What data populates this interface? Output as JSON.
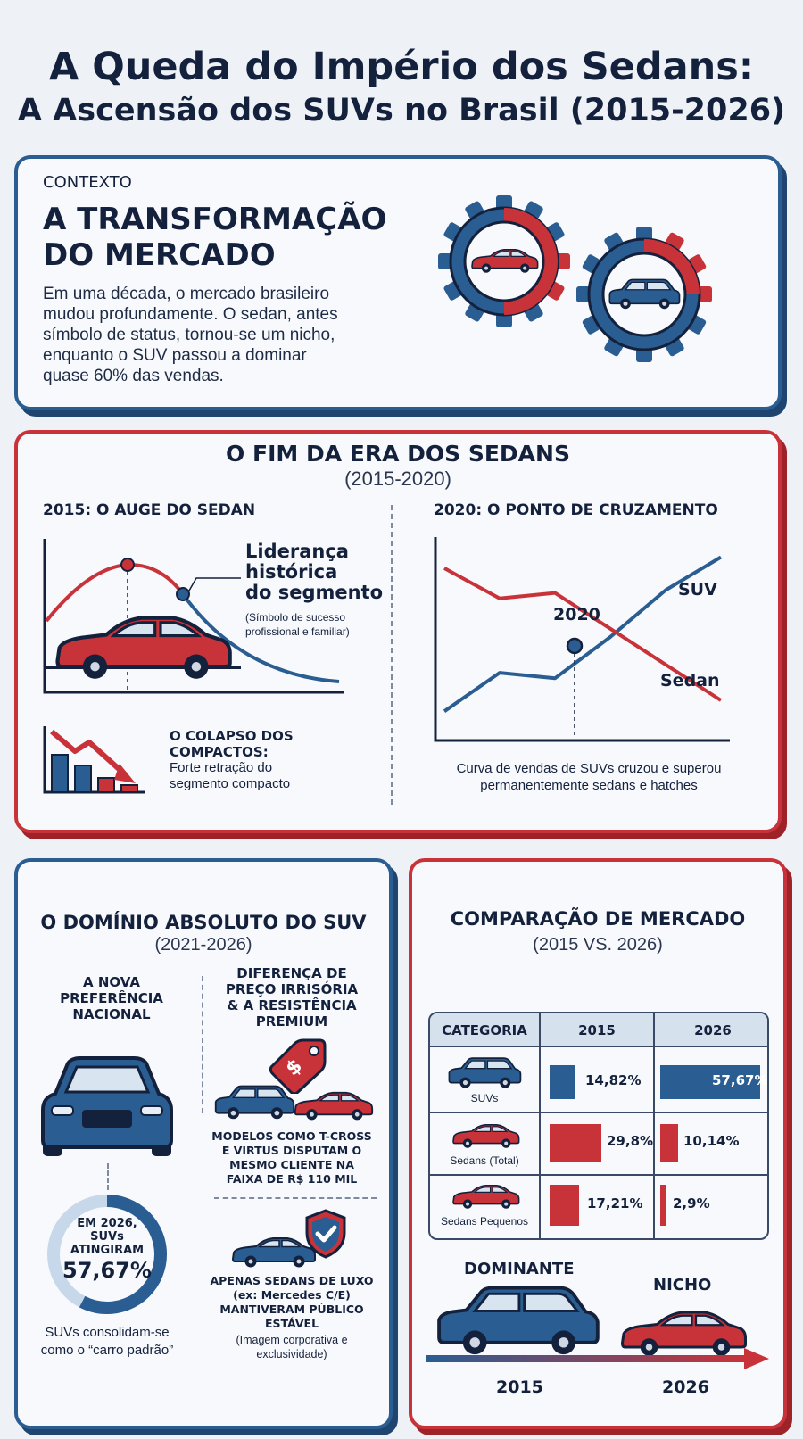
{
  "header": {
    "title_line1": "A Queda do Império dos Sedans:",
    "title_line2": "A Ascensão dos SUVs no Brasil (2015-2026)"
  },
  "context": {
    "label": "CONTEXTO",
    "heading": "A TRANSFORMAÇÃO\nDO MERCADO",
    "body": "Em uma década, o mercado brasileiro\nmudou profundamente. O sedan, antes\nsímbolo de status, tornou-se um nicho,\nenquanto o SUV passou a dominar\nquase 60% das vendas."
  },
  "sedan_era": {
    "title": "O FIM DA ERA DOS SEDANS",
    "subtitle": "(2015-2020)",
    "left_heading": "2015: O AUGE DO SEDAN",
    "leadership_title": "Liderança\nhistórica\ndo segmento",
    "leadership_note": "(Símbolo de sucesso\nprofissional e familiar)",
    "collapse_title": "O COLAPSO DOS\nCOMPACTOS:",
    "collapse_body": "Forte retração do\nsegmento compacto",
    "right_heading": "2020: O PONTO DE CRUZAMENTO",
    "cross_year": "2020",
    "suv_label": "SUV",
    "sedan_label": "Sedan",
    "cross_caption": "Curva de vendas de SUVs cruzou e superou\npermanentemente sedans e hatches"
  },
  "suv_domain": {
    "title": "O DOMÍNIO ABSOLUTO DO SUV",
    "subtitle": "(2021-2026)",
    "pref_title": "A NOVA\nPREFERÊNCIA\nNACIONAL",
    "price_title": "DIFERENÇA DE\nPREÇO IRRISÓRIA\n& A RESISTÊNCIA\nPREMIUM",
    "models_text": "MODELOS COMO T-CROSS\nE VIRTUS DISPUTAM O\nMESMO CLIENTE NA\nFAIXA DE R$ 110 MIL",
    "luxury_title": "APENAS SEDANS DE LUXO\n(ex: Mercedes C/E)\nMANTIVERAM PÚBLICO\nESTÁVEL",
    "luxury_note": "(Imagem corporativa e\nexclusividade)",
    "ring_line1": "EM 2026,\nSUVs\nATINGIRAM",
    "ring_value": "57,67%",
    "ring_share": 0.5767,
    "consolidate": "SUVs consolidam-se\ncomo o “carro padrão”"
  },
  "comparison": {
    "title": "COMPARAÇÃO DE MERCADO",
    "subtitle": "(2015 VS. 2026)",
    "col_category": "CATEGORIA",
    "col_2015": "2015",
    "col_2026": "2026",
    "rows": [
      {
        "label": "SUVs",
        "v2015": "14,82%",
        "v2026": "57,67%"
      },
      {
        "label": "Sedans (Total)",
        "v2015": "29,8%",
        "v2026": "10,14%"
      },
      {
        "label": "Sedans Pequenos",
        "v2015": "17,21%",
        "v2026": "2,9%"
      }
    ],
    "dominant": "DOMINANTE",
    "niche": "NICHO",
    "year_start": "2015",
    "year_end": "2026"
  },
  "colors": {
    "blue": "#2a5d91",
    "red": "#c8333a",
    "navy": "#14213d"
  },
  "chart_data": [
    {
      "type": "line",
      "title": "2020: O PONTO DE CRUZAMENTO",
      "series": [
        {
          "name": "SUV",
          "values": [
            3.8,
            5.2,
            5.0,
            6.5,
            8.2,
            9.4
          ]
        },
        {
          "name": "Sedan",
          "values": [
            9.0,
            7.9,
            8.1,
            6.8,
            5.5,
            4.2
          ]
        }
      ],
      "annotation": "2020"
    },
    {
      "type": "bar",
      "categories": [
        "SUVs",
        "Sedans (Total)",
        "Sedans Pequenos"
      ],
      "series": [
        {
          "name": "2015",
          "values": [
            14.82,
            29.8,
            17.21
          ]
        },
        {
          "name": "2026",
          "values": [
            57.67,
            10.14,
            2.9
          ]
        }
      ]
    }
  ]
}
